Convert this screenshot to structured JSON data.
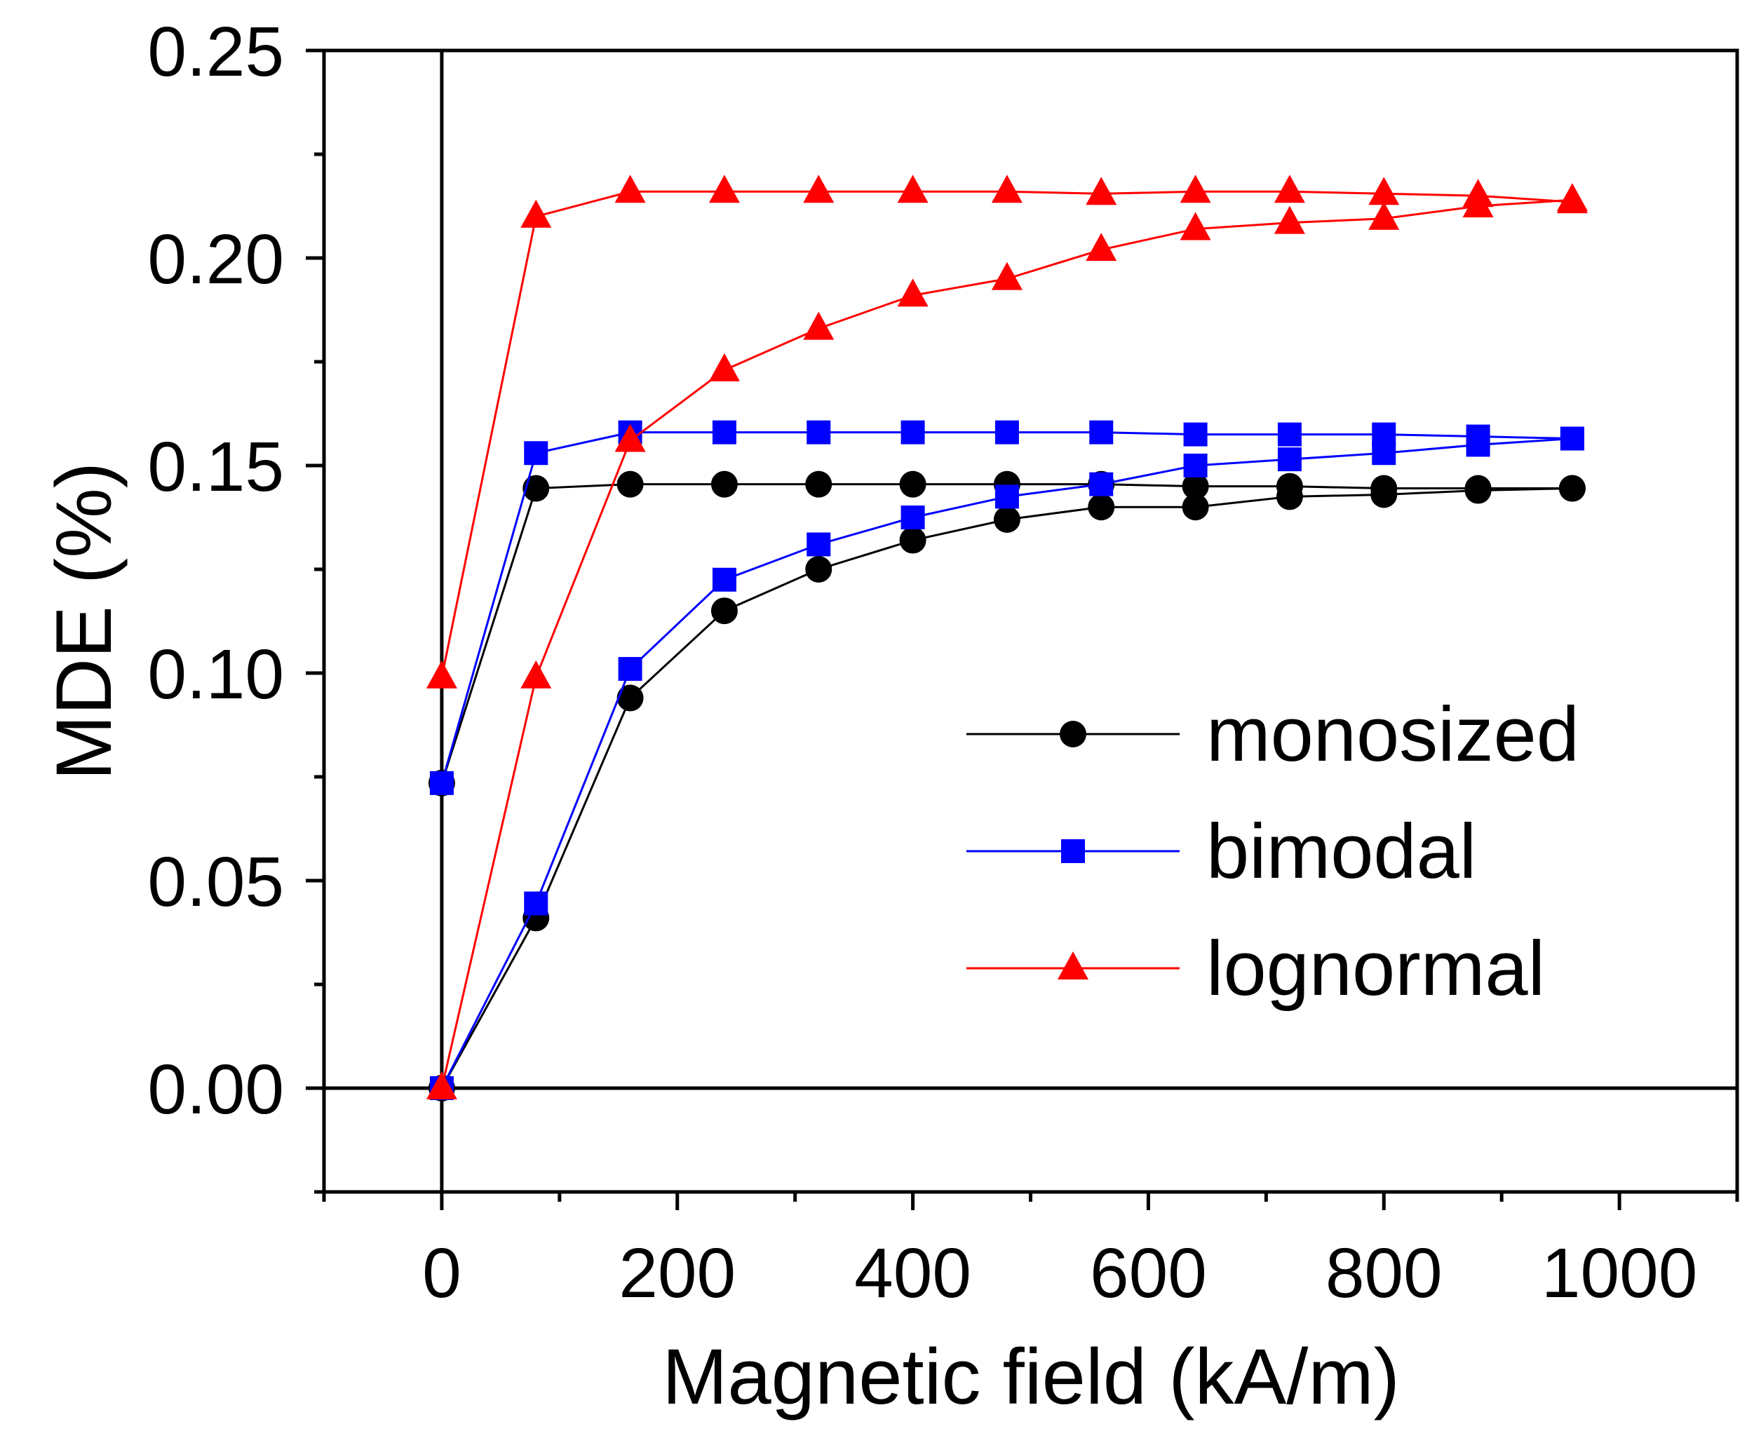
{
  "chart_data": {
    "type": "line",
    "title": "",
    "xlabel": "Magnetic field (kA/m)",
    "ylabel": "MDE (%)",
    "xlim": [
      -100,
      1100
    ],
    "ylim": [
      -0.025,
      0.25
    ],
    "xticks": [
      0,
      200,
      400,
      600,
      800,
      1000
    ],
    "xtick_labels": [
      "0",
      "200",
      "400",
      "600",
      "800",
      "1000"
    ],
    "yticks": [
      0.0,
      0.05,
      0.1,
      0.15,
      0.2,
      0.25
    ],
    "ytick_labels": [
      "0.00",
      "0.05",
      "0.10",
      "0.15",
      "0.20",
      "0.25"
    ],
    "legend_position": "center-right",
    "grid": false,
    "series": [
      {
        "name": "monosized",
        "color": "#000000",
        "marker": "circle",
        "branches": [
          {
            "x": [
              0,
              80,
              160,
              240,
              320,
              400,
              480,
              560,
              640,
              720,
              800,
              880,
              960
            ],
            "y": [
              0.0,
              0.041,
              0.094,
              0.115,
              0.125,
              0.132,
              0.137,
              0.14,
              0.14,
              0.1425,
              0.143,
              0.144,
              0.1445
            ]
          },
          {
            "x": [
              0,
              80,
              160,
              240,
              320,
              400,
              480,
              560,
              640,
              720,
              800,
              880,
              960
            ],
            "y": [
              0.0735,
              0.1445,
              0.1455,
              0.1455,
              0.1455,
              0.1455,
              0.1455,
              0.1455,
              0.145,
              0.145,
              0.1445,
              0.1445,
              0.1445
            ]
          }
        ]
      },
      {
        "name": "bimodal",
        "color": "#0000ff",
        "marker": "square",
        "branches": [
          {
            "x": [
              0,
              80,
              160,
              240,
              320,
              400,
              480,
              560,
              640,
              720,
              800,
              880,
              960
            ],
            "y": [
              0.0,
              0.0445,
              0.101,
              0.1225,
              0.131,
              0.1375,
              0.1425,
              0.1455,
              0.15,
              0.1515,
              0.153,
              0.155,
              0.1565
            ]
          },
          {
            "x": [
              0,
              80,
              160,
              240,
              320,
              400,
              480,
              560,
              640,
              720,
              800,
              880,
              960
            ],
            "y": [
              0.0735,
              0.153,
              0.158,
              0.158,
              0.158,
              0.158,
              0.158,
              0.158,
              0.1575,
              0.1575,
              0.1575,
              0.157,
              0.1565
            ]
          }
        ]
      },
      {
        "name": "lognormal",
        "color": "#ff0000",
        "marker": "triangle",
        "branches": [
          {
            "x": [
              0,
              80,
              160,
              240,
              320,
              400,
              480,
              560,
              640,
              720,
              800,
              880,
              960
            ],
            "y": [
              0.0,
              0.099,
              0.156,
              0.173,
              0.183,
              0.191,
              0.195,
              0.202,
              0.207,
              0.2085,
              0.2095,
              0.2125,
              0.214
            ]
          },
          {
            "x": [
              0,
              80,
              160,
              240,
              320,
              400,
              480,
              560,
              640,
              720,
              800,
              880,
              960
            ],
            "y": [
              0.099,
              0.21,
              0.216,
              0.216,
              0.216,
              0.216,
              0.216,
              0.2155,
              0.216,
              0.216,
              0.2155,
              0.215,
              0.2135
            ]
          }
        ]
      }
    ]
  }
}
